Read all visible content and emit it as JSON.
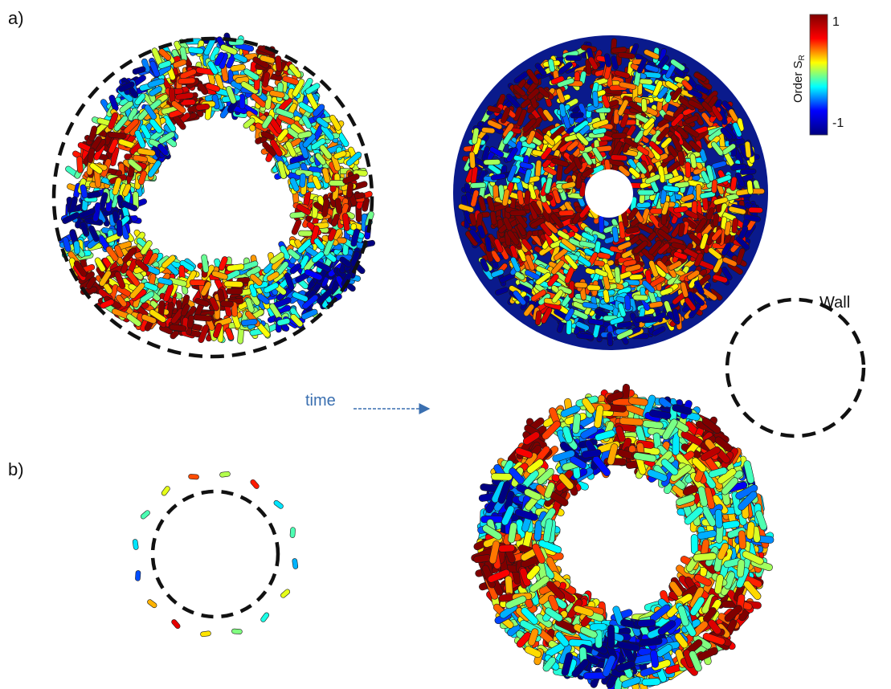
{
  "labels": {
    "panel_a": "a)",
    "panel_b": "b)",
    "time": "time",
    "wall": "Wall"
  },
  "colorbar": {
    "title": "Order S",
    "title_subscript": "R",
    "max_label": "1",
    "min_label": "-1",
    "range": [
      -1,
      1
    ],
    "colormap": "jet",
    "stops": [
      "#00007f",
      "#0000ff",
      "#00ffff",
      "#ffff00",
      "#ff0000",
      "#7f0000"
    ]
  },
  "colors": {
    "wall_dash": "#111111",
    "arrow": "#3a6fb0",
    "rod_outline": "#1a1a1a",
    "boundary_blue": "#0a1a8c"
  },
  "panels": [
    {
      "panel": "a",
      "position": "top-left",
      "pattern": "ring of rods",
      "wall": "dashed circle"
    },
    {
      "panel": "a",
      "position": "top-right",
      "pattern": "filled disk with small central hole",
      "wall": "solid"
    },
    {
      "panel": "b",
      "position": "bottom-left",
      "pattern": "sparse rods around wall",
      "wall": "dashed circle"
    },
    {
      "panel": "b",
      "position": "bottom-right",
      "pattern": "ring of rods",
      "wall": "none"
    }
  ]
}
